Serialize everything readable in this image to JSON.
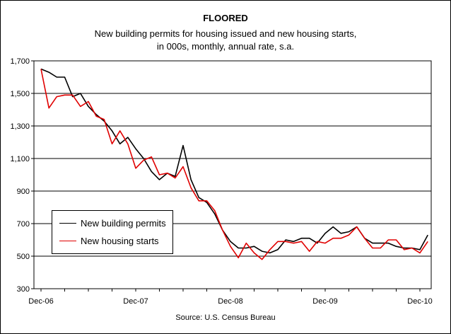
{
  "chart_data": {
    "type": "line",
    "title": "FLOORED",
    "subtitle_lines": [
      "New building permits for housing issued and new housing starts,",
      "in 000s, monthly, annual rate, s.a."
    ],
    "source": "Source: U.S. Census Bureau",
    "ylim": [
      300,
      1700
    ],
    "yticks": [
      300,
      500,
      700,
      900,
      1100,
      1300,
      1500,
      1700
    ],
    "ytick_labels": [
      "300",
      "500",
      "700",
      "900",
      "1,100",
      "1,300",
      "1,500",
      "1,700"
    ],
    "xticks": [
      "Dec-06",
      "Dec-07",
      "Dec-08",
      "Dec-09",
      "Dec-10"
    ],
    "x": [
      "Dec-06",
      "Jan-07",
      "Feb-07",
      "Mar-07",
      "Apr-07",
      "May-07",
      "Jun-07",
      "Jul-07",
      "Aug-07",
      "Sep-07",
      "Oct-07",
      "Nov-07",
      "Dec-07",
      "Jan-08",
      "Feb-08",
      "Mar-08",
      "Apr-08",
      "May-08",
      "Jun-08",
      "Jul-08",
      "Aug-08",
      "Sep-08",
      "Oct-08",
      "Nov-08",
      "Dec-08",
      "Jan-09",
      "Feb-09",
      "Mar-09",
      "Apr-09",
      "May-09",
      "Jun-09",
      "Jul-09",
      "Aug-09",
      "Sep-09",
      "Oct-09",
      "Nov-09",
      "Dec-09",
      "Jan-10",
      "Feb-10",
      "Mar-10",
      "Apr-10",
      "May-10",
      "Jun-10",
      "Jul-10",
      "Aug-10",
      "Sep-10",
      "Oct-10",
      "Nov-10",
      "Dec-10",
      "Jan-11"
    ],
    "grid": true,
    "legend_position": "bottom-left",
    "series": [
      {
        "name": "New building permits",
        "color": "#000000",
        "values": [
          1650,
          1630,
          1600,
          1600,
          1480,
          1500,
          1420,
          1370,
          1330,
          1270,
          1190,
          1230,
          1160,
          1100,
          1020,
          970,
          1010,
          990,
          1180,
          970,
          860,
          830,
          760,
          660,
          590,
          550,
          550,
          560,
          530,
          520,
          540,
          600,
          590,
          610,
          610,
          580,
          640,
          680,
          640,
          650,
          680,
          610,
          580,
          580,
          580,
          560,
          550,
          550,
          540,
          630
        ]
      },
      {
        "name": "New housing starts",
        "color": "#e00000",
        "values": [
          1650,
          1410,
          1480,
          1490,
          1490,
          1420,
          1450,
          1360,
          1340,
          1190,
          1270,
          1190,
          1040,
          1090,
          1110,
          1000,
          1010,
          980,
          1050,
          920,
          840,
          840,
          780,
          660,
          560,
          490,
          580,
          520,
          480,
          540,
          590,
          590,
          580,
          590,
          530,
          590,
          580,
          610,
          610,
          630,
          680,
          610,
          550,
          550,
          600,
          600,
          540,
          550,
          520,
          590
        ]
      }
    ]
  }
}
